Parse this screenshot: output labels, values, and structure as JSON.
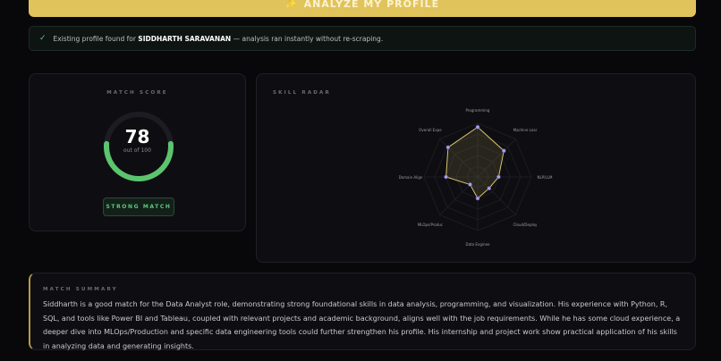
{
  "analyze_button": {
    "icon": "sparkle-icon",
    "label": "ANALYZE MY PROFILE"
  },
  "banner": {
    "prefix": "Existing profile found for",
    "name": "SIDDHARTH SARAVANAN",
    "suffix": "— analysis ran instantly without re-scraping."
  },
  "score": {
    "title": "MATCH SCORE",
    "value": "78",
    "sub": "out of 100",
    "badge": "STRONG MATCH",
    "color": "#5cc46f"
  },
  "radar": {
    "title": "SKILL RADAR",
    "axes": [
      "Programming",
      "Machine Lear",
      "NLP/LLM",
      "Cloud/Deploy",
      "Data Enginee",
      "MLOps/Produc",
      "Domain Align",
      "Overall Expe"
    ],
    "values": [
      93,
      69,
      39,
      30,
      40,
      20,
      59,
      78
    ],
    "max": 100,
    "line_color": "#d8c46a",
    "point_color": "#a9a3e8"
  },
  "summary": {
    "title": "MATCH SUMMARY",
    "text": "Siddharth is a good match for the Data Analyst role, demonstrating strong foundational skills in data analysis, programming, and visualization. His experience with Python, R, SQL, and tools like Power BI and Tableau, coupled with relevant projects and academic background, aligns well with the job requirements. While he has some cloud experience, a deeper dive into MLOps/Production and specific data engineering tools could further strengthen his profile. His internship and project work show practical application of his skills in analyzing data and generating insights."
  }
}
